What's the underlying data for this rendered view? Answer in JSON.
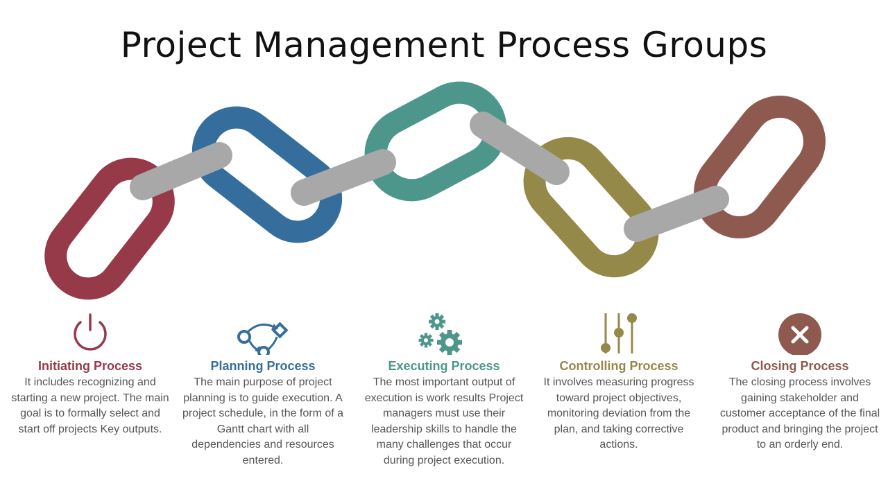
{
  "title": "Project Management Process Groups",
  "colors": {
    "initiating": "#963A4A",
    "planning": "#356E9C",
    "executing": "#4D968B",
    "controlling": "#95894A",
    "closing": "#8E5A4F",
    "connector": "#A8A8A8",
    "body_text": "#555555"
  },
  "processes": [
    {
      "key": "initiating",
      "heading": "Initiating Process",
      "icon": "power-icon",
      "body": "It includes recognizing and starting a new project. The main goal is to formally select and start off projects Key outputs."
    },
    {
      "key": "planning",
      "heading": "Planning Process",
      "icon": "flowchart-icon",
      "body": "The main purpose of project planning is to guide execution. A project schedule, in the form of a Gantt chart with all dependencies and resources entered."
    },
    {
      "key": "executing",
      "heading": "Executing Process",
      "icon": "gears-icon",
      "body": "The most important output of execution is work results Project managers must use their leadership skills to handle the many challenges that occur during project execution."
    },
    {
      "key": "controlling",
      "heading": "Controlling Process",
      "icon": "sliders-icon",
      "body": "It involves measuring progress toward project objectives, monitoring deviation from the plan, and taking corrective actions."
    },
    {
      "key": "closing",
      "heading": "Closing Process",
      "icon": "close-circle-icon",
      "body": "The closing process involves gaining stakeholder and customer acceptance of the final product and bringing the project to an orderly end."
    }
  ]
}
